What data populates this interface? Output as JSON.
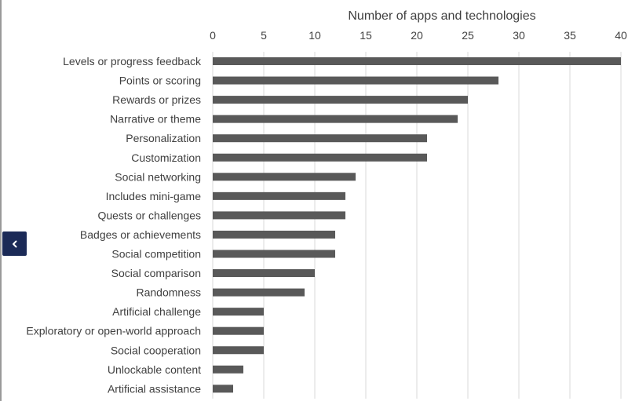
{
  "chart_data": {
    "type": "bar",
    "orientation": "horizontal",
    "title": "",
    "xlabel": "Number of apps and technologies",
    "ylabel": "",
    "xlim": [
      0,
      40
    ],
    "x_ticks": [
      0,
      5,
      10,
      15,
      20,
      25,
      30,
      35,
      40
    ],
    "x_axis_position": "top",
    "grid": true,
    "bar_color": "#595959",
    "categories": [
      "Levels or progress feedback",
      "Points or scoring",
      "Rewards or prizes",
      "Narrative or theme",
      "Personalization",
      "Customization",
      "Social networking",
      "Includes mini-game",
      "Quests or challenges",
      "Badges or achievements",
      "Social competition",
      "Social comparison",
      "Randomness",
      "Artificial challenge",
      "Exploratory or open-world approach",
      "Social cooperation",
      "Unlockable content",
      "Artificial assistance"
    ],
    "values": [
      40,
      28,
      25,
      24,
      21,
      21,
      14,
      13,
      13,
      12,
      12,
      10,
      9,
      5,
      5,
      5,
      3,
      2
    ]
  },
  "nav": {
    "prev_icon": "chevron-left-icon",
    "color": "#1b2a57"
  }
}
